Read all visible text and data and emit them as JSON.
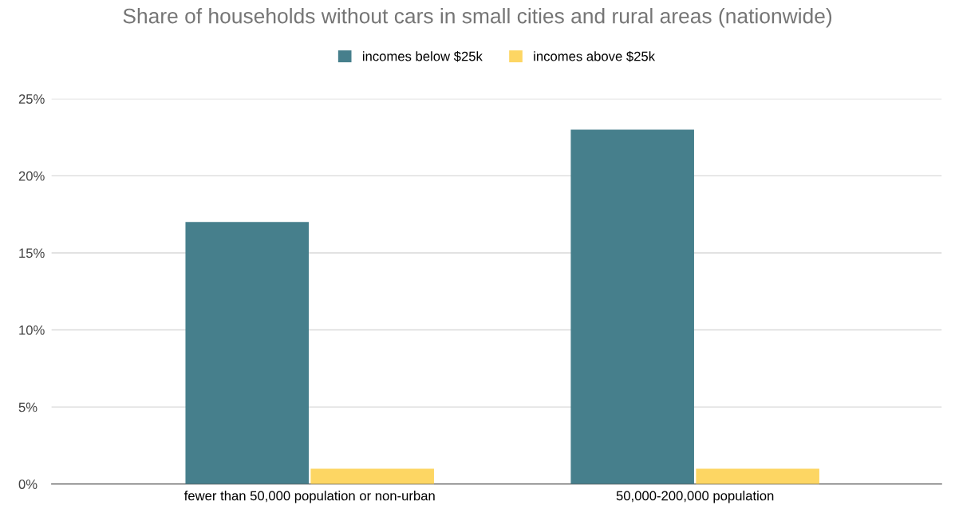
{
  "chart_data": {
    "type": "bar",
    "title": "Share of households without cars in small cities and rural areas (nationwide)",
    "categories": [
      "fewer than 50,000 population or non-urban",
      "50,000-200,000 population"
    ],
    "series": [
      {
        "name": "incomes below $25k",
        "color": "#467f8c",
        "values": [
          17,
          23
        ]
      },
      {
        "name": "incomes above $25k",
        "color": "#fdd663",
        "values": [
          1,
          1
        ]
      }
    ],
    "ylim": [
      0,
      25
    ],
    "yticks": [
      {
        "value": 0,
        "label": "0%"
      },
      {
        "value": 5,
        "label": "5%"
      },
      {
        "value": 10,
        "label": "10%"
      },
      {
        "value": 15,
        "label": "15%"
      },
      {
        "value": 20,
        "label": "20%"
      },
      {
        "value": 25,
        "label": "25%"
      }
    ],
    "grid": "y",
    "legend": "top"
  }
}
